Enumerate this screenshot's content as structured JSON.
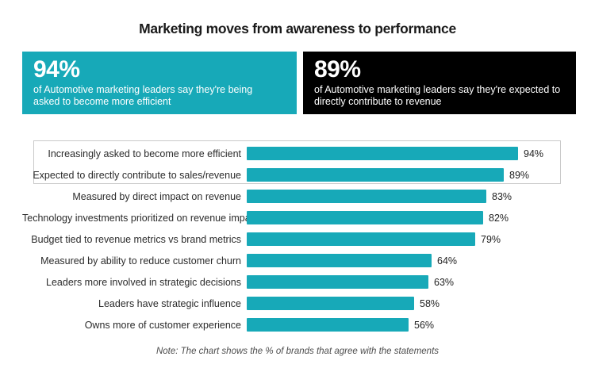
{
  "colors": {
    "accent_teal": "#17a9b8",
    "stat_black": "#000000",
    "border_gray": "#c9c9c9",
    "text_dark": "#2b2b2b"
  },
  "stat_boxes": [
    {
      "value": "94%",
      "text": "of Automotive marketing leaders say they're being asked to become more efficient"
    },
    {
      "value": "89%",
      "text": "of Automotive marketing leaders say they're expected to directly contribute to revenue"
    }
  ],
  "chart_data": {
    "type": "bar",
    "orientation": "horizontal",
    "title": "Marketing moves from awareness to performance",
    "categories": [
      "Increasingly asked to become more efficient",
      "Expected to directly contribute to sales/revenue",
      "Measured by direct impact on revenue",
      "Technology investments prioritized on revenue impact",
      "Budget tied to revenue metrics vs brand metrics",
      "Measured by ability to reduce customer churn",
      "Leaders more involved in strategic decisions",
      "Leaders have strategic influence",
      "Owns more of customer experience"
    ],
    "values": [
      94,
      89,
      83,
      82,
      79,
      64,
      63,
      58,
      56
    ],
    "value_suffix": "%",
    "bar_color": "#17a9b8",
    "xlim": [
      0,
      100
    ],
    "grid": false,
    "legend": false,
    "highlighted_rows": [
      0,
      1
    ],
    "note": "Note: The chart shows the % of brands that agree with the statements"
  }
}
